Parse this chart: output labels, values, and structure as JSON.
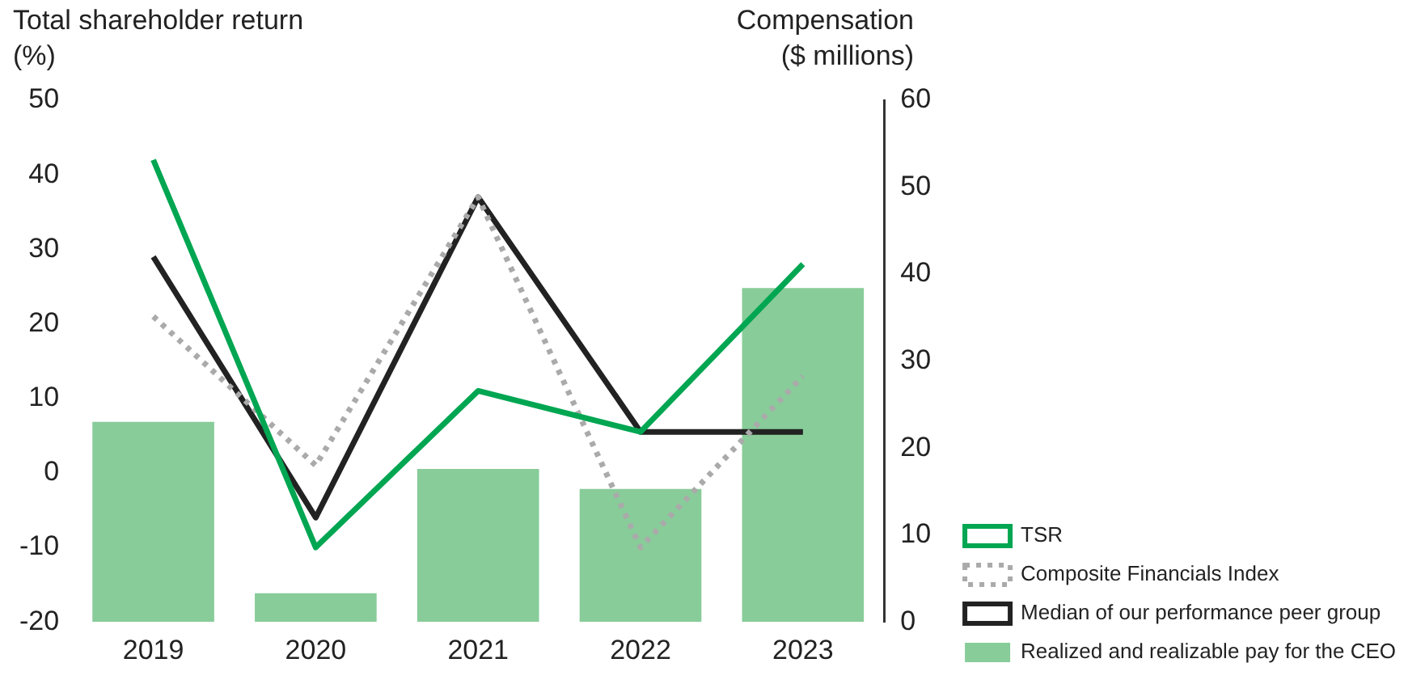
{
  "chart_data": {
    "type": "bar",
    "ylabel": "Total shareholder return\n(%)",
    "y2label": "Compensation\n($ millions)",
    "categories": [
      "2019",
      "2020",
      "2021",
      "2022",
      "2023"
    ],
    "series": [
      {
        "name": "TSR",
        "type": "line",
        "color": "#00a651",
        "axis": "y",
        "line_style": "solid",
        "values": [
          42,
          -10,
          11,
          5.5,
          28
        ]
      },
      {
        "name": "Composite Financials Index",
        "type": "line",
        "color": "#aaaaaa",
        "axis": "y",
        "line_style": "dotted",
        "values": [
          21,
          1,
          37,
          -10,
          13
        ]
      },
      {
        "name": "Median of our performance peer group",
        "type": "line",
        "color": "#222222",
        "axis": "y",
        "line_style": "solid",
        "values": [
          29,
          -6,
          37,
          5.5,
          5.5
        ]
      },
      {
        "name": "Realized and realizable pay for the CEO",
        "color": "#88cc99",
        "axis": "y2",
        "values": [
          23,
          3.3,
          17.6,
          15.3,
          38.4
        ]
      }
    ],
    "ylim": [
      -20,
      50
    ],
    "yticks": [
      -20,
      -10,
      0,
      10,
      20,
      30,
      40,
      50
    ],
    "y2lim": [
      0,
      60
    ],
    "y2ticks": [
      0,
      10,
      20,
      30,
      40,
      50,
      60
    ],
    "grid": false,
    "legend": "right",
    "marker": "none"
  }
}
